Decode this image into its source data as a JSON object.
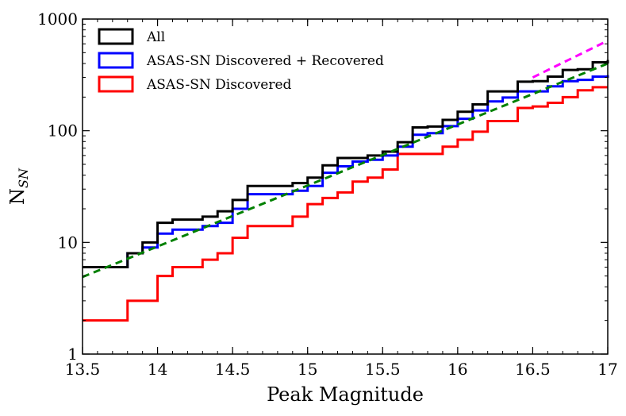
{
  "chart_data": {
    "type": "step-histogram",
    "title": "",
    "xlabel": "Peak Magnitude",
    "ylabel_main": "N",
    "ylabel_sub": "SN",
    "xlim": [
      13.5,
      17
    ],
    "ylim": [
      1,
      1000
    ],
    "yscale": "log",
    "xticks": [
      13.5,
      14,
      14.5,
      15,
      15.5,
      16,
      16.5,
      17
    ],
    "xtick_labels": [
      "13.5",
      "14",
      "14.5",
      "15",
      "15.5",
      "16",
      "16.5",
      "17"
    ],
    "yticks": [
      1,
      10,
      100,
      1000
    ],
    "ytick_labels": [
      "1",
      "10",
      "100",
      "1000"
    ],
    "legend_position": "top-left",
    "bin_edges": [
      13.5,
      13.6,
      13.7,
      13.8,
      13.9,
      14.0,
      14.1,
      14.2,
      14.3,
      14.4,
      14.5,
      14.6,
      14.7,
      14.8,
      14.9,
      15.0,
      15.1,
      15.2,
      15.3,
      15.4,
      15.5,
      15.6,
      15.7,
      15.8,
      15.9,
      16.0,
      16.1,
      16.2,
      16.3,
      16.4,
      16.5,
      16.6,
      16.7,
      16.8,
      16.9,
      17.0
    ],
    "series": [
      {
        "name": "All",
        "color": "#000000",
        "values": [
          6,
          6,
          6,
          8,
          10,
          15,
          16,
          16,
          17,
          19,
          24,
          32,
          32,
          32,
          34,
          38,
          49,
          57,
          57,
          60,
          65,
          79,
          107,
          109,
          125,
          148,
          172,
          225,
          225,
          275,
          278,
          305,
          350,
          355,
          410,
          430
        ]
      },
      {
        "name": "ASAS-SN Discovered + Recovered",
        "color": "#0000ff",
        "values": [
          6,
          6,
          6,
          8,
          9,
          12,
          13,
          13,
          14,
          15,
          20,
          27,
          27,
          27,
          29,
          32,
          42,
          48,
          53,
          55,
          60,
          72,
          92,
          95,
          110,
          128,
          152,
          183,
          198,
          225,
          225,
          250,
          278,
          285,
          305,
          315
        ]
      },
      {
        "name": "ASAS-SN Discovered",
        "color": "#ff0000",
        "values": [
          2,
          2,
          2,
          3,
          3,
          5,
          6,
          6,
          7,
          8,
          11,
          14,
          14,
          14,
          17,
          22,
          25,
          28,
          35,
          38,
          45,
          62,
          62,
          62,
          72,
          83,
          98,
          122,
          122,
          160,
          165,
          178,
          200,
          230,
          245,
          245
        ]
      }
    ],
    "fit_lines": [
      {
        "name": "fit",
        "color": "#008000",
        "style": "dashed",
        "x": [
          13.5,
          17.0
        ],
        "y": [
          4.9,
          400
        ]
      },
      {
        "name": "fit extension",
        "color": "#ff00ff",
        "style": "dashed",
        "x": [
          16.5,
          17.0
        ],
        "y": [
          300,
          640
        ]
      }
    ]
  }
}
